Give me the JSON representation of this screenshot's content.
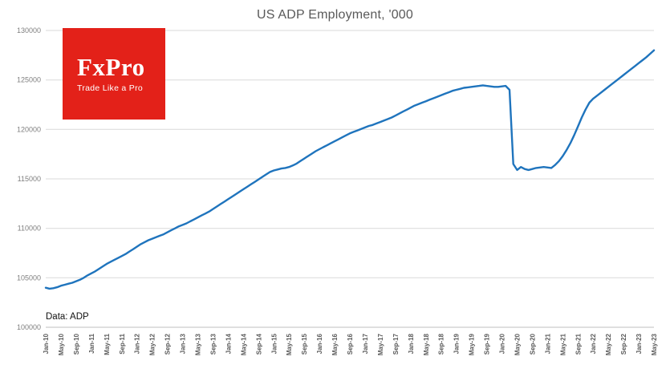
{
  "title": "US ADP Employment, '000",
  "footnote": "Data: ADP",
  "logo": {
    "wordmark": "FxPro",
    "tagline": "Trade Like a Pro",
    "background": "#e32119",
    "text_color": "#ffffff"
  },
  "colors": {
    "line": "#1f74bd",
    "grid": "#d9d9d9",
    "axis": "#bfbfbf",
    "title": "#595959",
    "ytick": "#7f7f7f",
    "xtick": "#595959"
  },
  "chart_data": {
    "type": "line",
    "title": "US ADP Employment, '000",
    "xlabel": "",
    "ylabel": "",
    "ylim": [
      100000,
      130000
    ],
    "y_ticks": [
      100000,
      105000,
      110000,
      115000,
      120000,
      125000,
      130000
    ],
    "grid": true,
    "legend": "none",
    "x_start": "Jan-10",
    "x_end": "May-23",
    "x_tick_every_n_months": 4,
    "x_tick_labels": [
      "Jan-10",
      "May-10",
      "Sep-10",
      "Jan-11",
      "May-11",
      "Sep-11",
      "Jan-12",
      "May-12",
      "Sep-12",
      "Jan-13",
      "May-13",
      "Sep-13",
      "Jan-14",
      "May-14",
      "Sep-14",
      "Jan-15",
      "May-15",
      "Sep-15",
      "Jan-16",
      "May-16",
      "Sep-16",
      "Jan-17",
      "May-17",
      "Sep-17",
      "Jan-18",
      "May-18",
      "Sep-18",
      "Jan-19",
      "May-19",
      "Sep-19",
      "Jan-20",
      "May-20",
      "Sep-20",
      "Jan-21",
      "May-21",
      "Sep-21",
      "Jan-22",
      "May-22",
      "Sep-22",
      "Jan-23",
      "May-23"
    ],
    "series_name": "US ADP Employment ('000), monthly Jan-2010 to May-2023",
    "values": [
      104000,
      103900,
      103950,
      104050,
      104200,
      104300,
      104400,
      104500,
      104650,
      104800,
      105000,
      105250,
      105450,
      105650,
      105900,
      106150,
      106400,
      106600,
      106800,
      107000,
      107200,
      107400,
      107650,
      107900,
      108150,
      108400,
      108600,
      108800,
      108950,
      109100,
      109250,
      109400,
      109600,
      109800,
      110000,
      110200,
      110350,
      110500,
      110700,
      110900,
      111100,
      111300,
      111500,
      111700,
      111950,
      112200,
      112450,
      112700,
      112950,
      113200,
      113450,
      113700,
      113950,
      114200,
      114450,
      114700,
      114950,
      115200,
      115450,
      115700,
      115850,
      115950,
      116050,
      116100,
      116200,
      116350,
      116550,
      116800,
      117050,
      117300,
      117550,
      117800,
      118000,
      118200,
      118400,
      118600,
      118800,
      119000,
      119200,
      119400,
      119600,
      119750,
      119900,
      120050,
      120200,
      120350,
      120450,
      120600,
      120750,
      120900,
      121050,
      121200,
      121400,
      121600,
      121800,
      122000,
      122200,
      122400,
      122550,
      122700,
      122850,
      123000,
      123150,
      123300,
      123450,
      123600,
      123750,
      123900,
      124000,
      124100,
      124200,
      124250,
      124300,
      124350,
      124400,
      124450,
      124400,
      124350,
      124300,
      124300,
      124350,
      124400,
      124000,
      116500,
      115900,
      116200,
      116000,
      115900,
      116000,
      116100,
      116150,
      116200,
      116150,
      116100,
      116400,
      116800,
      117300,
      117900,
      118600,
      119400,
      120300,
      121200,
      122000,
      122700,
      123100,
      123400,
      123700,
      124000,
      124300,
      124600,
      124900,
      125200,
      125500,
      125800,
      126100,
      126400,
      126700,
      127000,
      127300,
      127650,
      128000
    ]
  }
}
